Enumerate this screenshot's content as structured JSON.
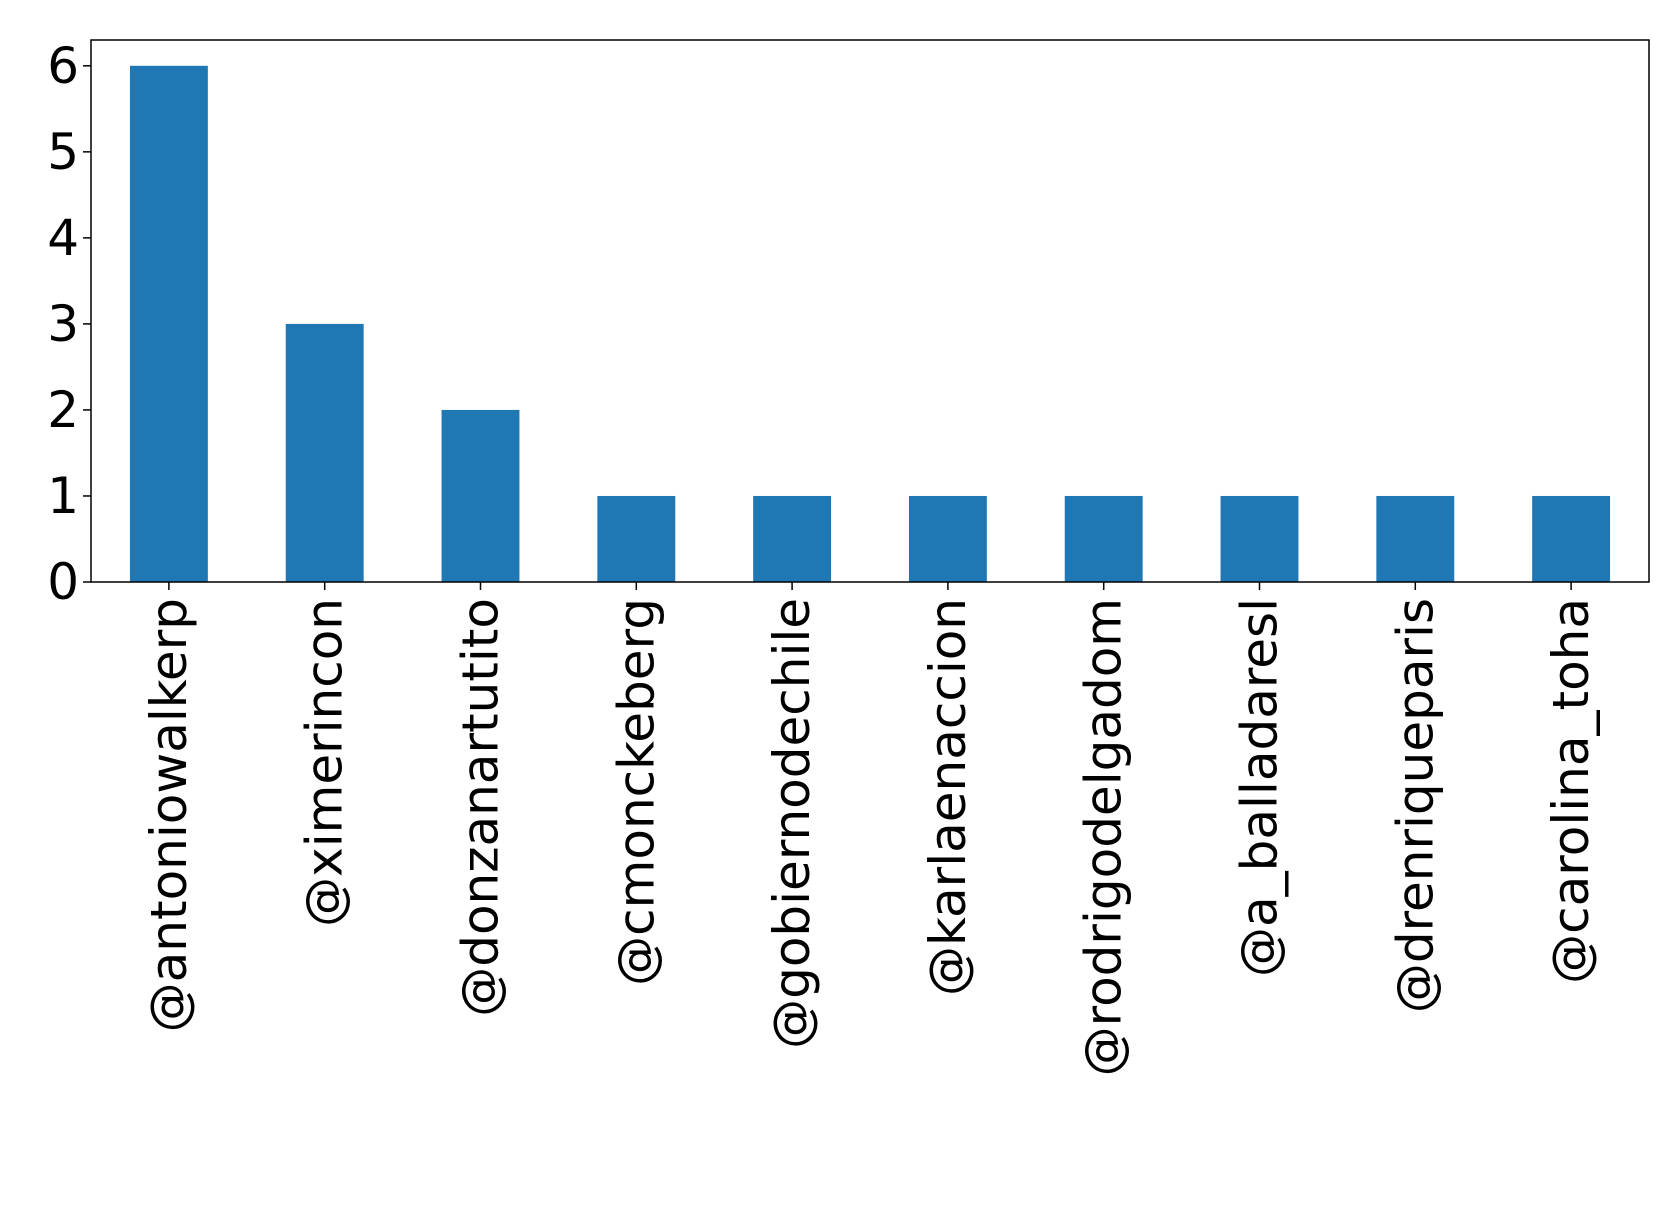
{
  "chart_data": {
    "type": "bar",
    "categories": [
      "@antoniowalkerp",
      "@ximerincon",
      "@donzanartutito",
      "@cmonckeberg",
      "@gobiernodechile",
      "@karlaenaccion",
      "@rodrigodelgadom",
      "@a_balladaresl",
      "@drenriqueparis",
      "@carolina_toha"
    ],
    "values": [
      6,
      3,
      2,
      1,
      1,
      1,
      1,
      1,
      1,
      1
    ],
    "title": "",
    "xlabel": "",
    "ylabel": "",
    "ylim": [
      0,
      6.3
    ],
    "yticks": [
      "0",
      "1",
      "2",
      "3",
      "4",
      "5",
      "6"
    ],
    "grid": false,
    "colors": {
      "bar": "#1f77b4",
      "axes": "#000000"
    }
  }
}
